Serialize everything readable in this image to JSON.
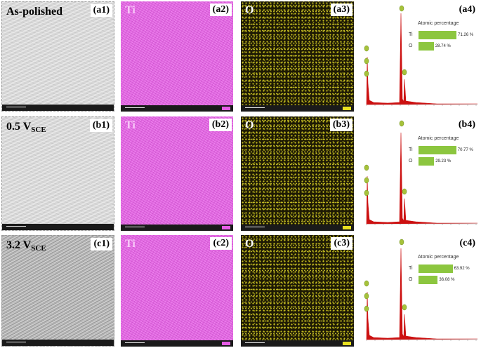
{
  "rows": [
    {
      "condition_main": "As-polished",
      "condition_sub": "",
      "labels": [
        "(a1)",
        "(a2)",
        "(a3)",
        "(a4)"
      ],
      "ti_pct": 71.26,
      "o_pct": 28.74,
      "ti_text": "71.26 %",
      "o_text": "28.74 %"
    },
    {
      "condition_main": "0.5 V",
      "condition_sub": "SCE",
      "labels": [
        "(b1)",
        "(b2)",
        "(b3)",
        "(b4)"
      ],
      "ti_pct": 70.77,
      "o_pct": 29.23,
      "ti_text": "70.77 %",
      "o_text": "29.23 %"
    },
    {
      "condition_main": "3.2 V",
      "condition_sub": "SCE",
      "labels": [
        "(c1)",
        "(c2)",
        "(c3)",
        "(c4)"
      ],
      "ti_pct": 63.92,
      "o_pct": 36.08,
      "ti_text": "63.92 %",
      "o_text": "36.08 %"
    }
  ],
  "maps": {
    "ti_label": "Ti",
    "o_label": "O"
  },
  "eds": {
    "title": "Atomic percentage",
    "ti_label": "Ti",
    "o_label": "O"
  },
  "colors": {
    "ti_map": "#e65ce6",
    "o_map": "#c8c020",
    "bar": "#8cc63f",
    "spectrum": "#cc1111",
    "marker": "#a6c23a"
  }
}
